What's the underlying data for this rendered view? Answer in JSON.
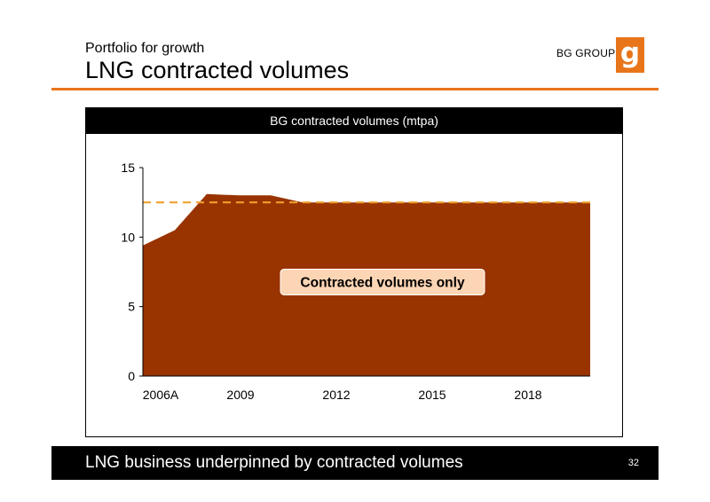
{
  "slide": {
    "subtitle": "Portfolio for growth",
    "title": "LNG contracted volumes",
    "logo_text": "BG GROUP",
    "logo_glyph": "g",
    "accent_color": "#e8751a",
    "footer_text": "LNG business underpinned by contracted volumes",
    "page_number": "32"
  },
  "chart_data": {
    "type": "area",
    "title": "BG contracted volumes (mtpa)",
    "x": [
      2006,
      2007,
      2008,
      2009,
      2010,
      2011,
      2012,
      2013,
      2014,
      2015,
      2016,
      2017,
      2018,
      2019,
      2020
    ],
    "x_tick_values": [
      2006,
      2009,
      2012,
      2015,
      2018
    ],
    "x_tick_labels": [
      "2006A",
      "2009",
      "2012",
      "2015",
      "2018"
    ],
    "series": [
      {
        "values": [
          9.4,
          10.5,
          13.1,
          13.0,
          13.0,
          12.5,
          12.5,
          12.5,
          12.5,
          12.5,
          12.5,
          12.5,
          12.5,
          12.5,
          12.5
        ],
        "color": "#993300"
      }
    ],
    "reference_line": {
      "value": 12.5,
      "style": "dashed",
      "color": "#f0a030"
    },
    "annotation": {
      "text": "Contracted volumes only",
      "x": 2013.5,
      "y": 6.8,
      "background": "#fcd5b4"
    },
    "ylim": [
      0,
      15
    ],
    "y_ticks": [
      0,
      5,
      10,
      15
    ],
    "grid": false,
    "legend": "none"
  }
}
